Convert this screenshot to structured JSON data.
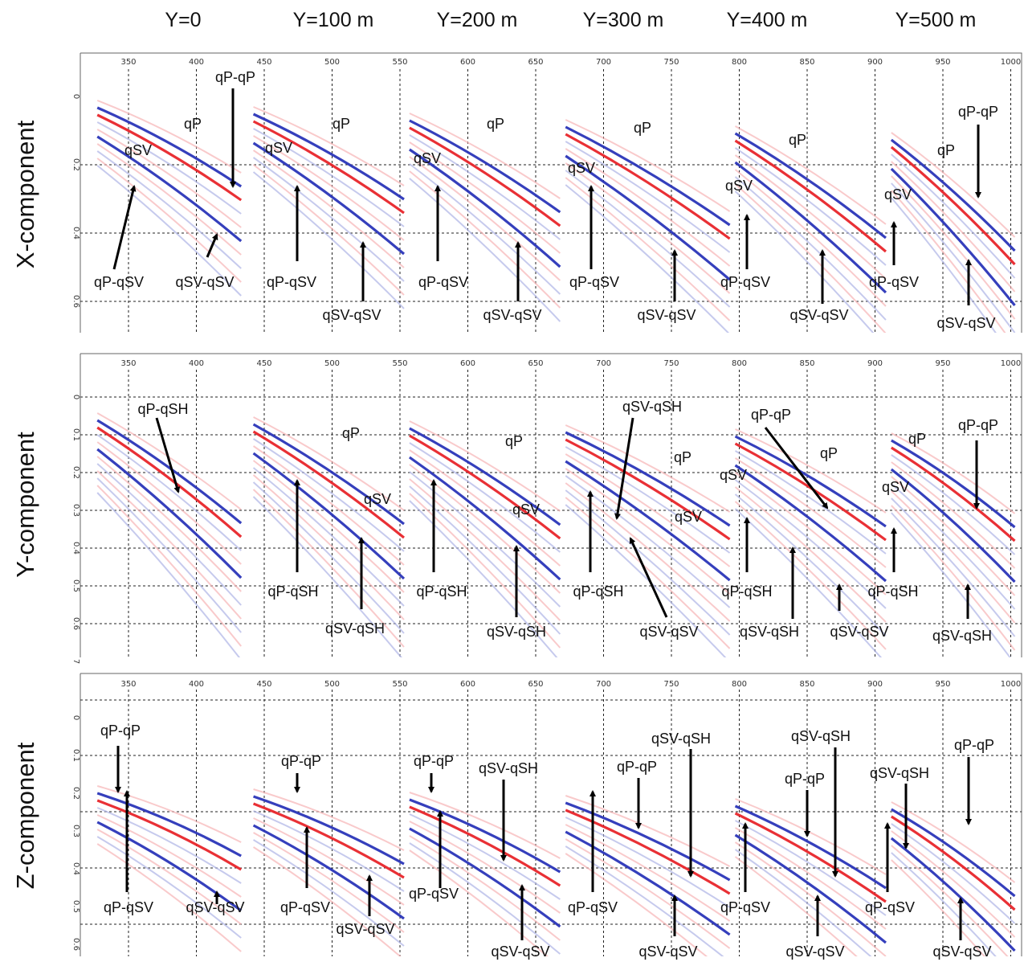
{
  "headers": [
    "Y=0",
    "Y=100 m",
    "Y=200 m",
    "Y=300 m",
    "Y=400 m",
    "Y=500 m"
  ],
  "x_ticks": [
    "350",
    "400",
    "450",
    "500",
    "550",
    "600",
    "650",
    "700",
    "750",
    "800",
    "850",
    "900",
    "950",
    "1000"
  ],
  "panels": [
    {
      "title": "X-component",
      "t_ticks": [
        "0",
        "0.2",
        "0.4",
        "0.6"
      ],
      "labels": [
        "qP-qP",
        "qP",
        "qSV",
        "qP-qSV",
        "qSV-qSV",
        "qP",
        "qSV",
        "qP-qSV",
        "qSV-qSV",
        "qP",
        "qSV",
        "qP-qSV",
        "qSV-qSV",
        "qP",
        "qSV",
        "qP-qSV",
        "qSV-qSV",
        "qP",
        "qSV",
        "qP-qSV",
        "qSV-qSV",
        "qP-qP",
        "qP",
        "qSV",
        "qP-qSV",
        "qSV-qSV"
      ]
    },
    {
      "title": "Y-component",
      "t_ticks": [
        "0",
        "0.1",
        "0.2",
        "0.3",
        "0.4",
        "0.5",
        "0.6",
        "7"
      ],
      "labels": [
        "qP-qSH",
        "qP",
        "qSV",
        "qP-qSH",
        "qSV-qSH",
        "qP",
        "qSV",
        "qP-qSH",
        "qSV-qSH",
        "qSV-qSH",
        "qP",
        "qSV",
        "qP-qSH",
        "qSV-qSV",
        "qP-qP",
        "qP",
        "qSV",
        "qP-qSH",
        "qSV-qSH",
        "qSV-qSV",
        "qP",
        "qP-qP",
        "qSV",
        "qP-qSH",
        "qSV-qSH"
      ]
    },
    {
      "title": "Z-component",
      "t_ticks": [
        "0",
        "0.1",
        "0.2",
        "0.3",
        "0.4",
        "0.5",
        "0.6"
      ],
      "labels": [
        "qP-qP",
        "qP-qSV",
        "qSV-qSV",
        "qP-qP",
        "qP-qSV",
        "qSV-qSV",
        "qP-qP",
        "qSV-qSH",
        "qP-qSV",
        "qSV-qSV",
        "qP-qP",
        "qSV-qSH",
        "qP-qSV",
        "qSV-qSV",
        "qSV-qSH",
        "qP-qP",
        "qP-qSV",
        "qSV-qSV",
        "qP-qP",
        "qSV-qSH",
        "qP-qSV",
        "qSV-qSV"
      ]
    }
  ],
  "colors": {
    "red": "#e8252a",
    "blue": "#2a35b8",
    "pale_red": "#f6b3b5",
    "pale_blue": "#aeb4e6"
  }
}
